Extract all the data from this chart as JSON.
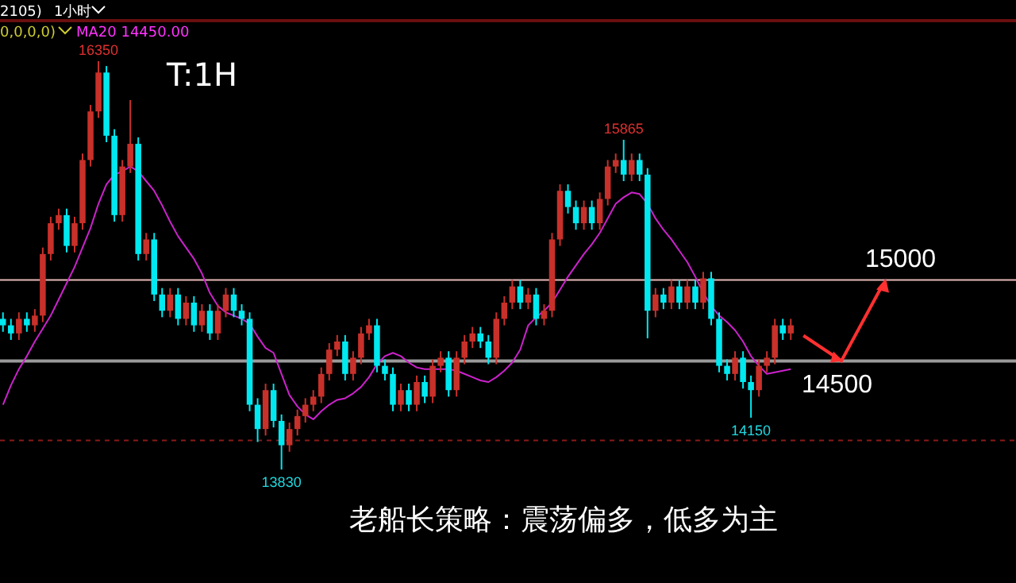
{
  "chart_data": {
    "type": "candlestick",
    "categories": [
      null,
      null,
      null,
      null,
      null,
      null,
      null,
      null,
      null,
      null,
      null,
      null,
      null,
      null,
      null,
      null,
      null,
      null,
      null,
      null,
      null,
      null,
      null,
      null,
      null,
      null,
      null,
      null,
      null,
      null,
      null,
      null,
      null,
      null,
      null,
      null,
      null,
      null,
      null,
      null,
      null,
      null,
      null,
      null,
      null,
      null,
      null,
      null,
      null,
      null,
      null,
      null,
      null,
      null,
      null,
      null,
      null,
      null,
      null,
      null,
      null,
      null,
      null,
      null,
      null,
      null,
      null,
      null,
      null,
      null,
      null,
      null,
      null,
      null,
      null,
      null,
      null,
      null,
      null,
      null,
      null,
      null,
      null,
      null,
      null,
      null,
      null,
      null,
      null,
      null,
      null,
      null,
      null,
      null,
      null,
      null,
      null,
      null,
      null,
      null
    ],
    "ylim": [
      13130,
      16600
    ],
    "ohlc": [
      [
        14760,
        14800,
        14680,
        14720
      ],
      [
        14720,
        14760,
        14630,
        14670
      ],
      [
        14670,
        14800,
        14630,
        14760
      ],
      [
        14760,
        14800,
        14680,
        14720
      ],
      [
        14720,
        14820,
        14680,
        14780
      ],
      [
        14780,
        15200,
        14740,
        15160
      ],
      [
        15160,
        15390,
        15120,
        15350
      ],
      [
        15350,
        15440,
        15310,
        15400
      ],
      [
        15400,
        15440,
        15170,
        15210
      ],
      [
        15210,
        15390,
        15170,
        15350
      ],
      [
        15350,
        15780,
        15310,
        15740
      ],
      [
        15740,
        16080,
        15700,
        16040
      ],
      [
        16040,
        16350,
        16000,
        16280
      ],
      [
        16280,
        16320,
        15850,
        15890
      ],
      [
        15890,
        15930,
        15360,
        15400
      ],
      [
        15400,
        15740,
        15360,
        15700
      ],
      [
        15700,
        16110,
        15660,
        15840
      ],
      [
        15840,
        15880,
        15120,
        15160
      ],
      [
        15160,
        15290,
        15120,
        15250
      ],
      [
        15250,
        15290,
        14870,
        14910
      ],
      [
        14910,
        14950,
        14770,
        14810
      ],
      [
        14810,
        14950,
        14770,
        14910
      ],
      [
        14910,
        14950,
        14720,
        14760
      ],
      [
        14760,
        14900,
        14720,
        14860
      ],
      [
        14860,
        14900,
        14680,
        14720
      ],
      [
        14720,
        14850,
        14680,
        14810
      ],
      [
        14810,
        14850,
        14630,
        14670
      ],
      [
        14670,
        14850,
        14630,
        14810
      ],
      [
        14810,
        14950,
        14770,
        14910
      ],
      [
        14910,
        14950,
        14770,
        14810
      ],
      [
        14810,
        14850,
        14720,
        14760
      ],
      [
        14760,
        14800,
        14190,
        14230
      ],
      [
        14230,
        14270,
        14000,
        14080
      ],
      [
        14080,
        14360,
        14040,
        14320
      ],
      [
        14320,
        14360,
        14090,
        14130
      ],
      [
        14130,
        14170,
        13830,
        13980
      ],
      [
        13980,
        14120,
        13940,
        14080
      ],
      [
        14080,
        14200,
        14040,
        14160
      ],
      [
        14160,
        14270,
        14120,
        14230
      ],
      [
        14230,
        14320,
        14190,
        14280
      ],
      [
        14280,
        14460,
        14240,
        14420
      ],
      [
        14420,
        14610,
        14380,
        14570
      ],
      [
        14570,
        14660,
        14530,
        14620
      ],
      [
        14620,
        14660,
        14380,
        14420
      ],
      [
        14420,
        14560,
        14380,
        14520
      ],
      [
        14520,
        14710,
        14480,
        14670
      ],
      [
        14670,
        14760,
        14630,
        14720
      ],
      [
        14720,
        14760,
        14430,
        14470
      ],
      [
        14470,
        14510,
        14380,
        14420
      ],
      [
        14420,
        14460,
        14190,
        14230
      ],
      [
        14230,
        14360,
        14190,
        14320
      ],
      [
        14320,
        14360,
        14190,
        14230
      ],
      [
        14230,
        14410,
        14190,
        14370
      ],
      [
        14370,
        14410,
        14240,
        14280
      ],
      [
        14280,
        14510,
        14240,
        14470
      ],
      [
        14470,
        14560,
        14430,
        14520
      ],
      [
        14520,
        14560,
        14280,
        14320
      ],
      [
        14320,
        14560,
        14280,
        14520
      ],
      [
        14520,
        14660,
        14480,
        14620
      ],
      [
        14620,
        14710,
        14580,
        14670
      ],
      [
        14670,
        14710,
        14580,
        14620
      ],
      [
        14620,
        14660,
        14480,
        14520
      ],
      [
        14520,
        14800,
        14480,
        14760
      ],
      [
        14760,
        14900,
        14720,
        14860
      ],
      [
        14860,
        15000,
        14820,
        14960
      ],
      [
        14960,
        15000,
        14820,
        14860
      ],
      [
        14860,
        14950,
        14820,
        14910
      ],
      [
        14910,
        14950,
        14720,
        14760
      ],
      [
        14760,
        14850,
        14720,
        14810
      ],
      [
        14810,
        15290,
        14770,
        15250
      ],
      [
        15250,
        15590,
        15210,
        15550
      ],
      [
        15550,
        15590,
        15410,
        15450
      ],
      [
        15450,
        15490,
        15310,
        15350
      ],
      [
        15350,
        15490,
        15310,
        15450
      ],
      [
        15450,
        15490,
        15310,
        15350
      ],
      [
        15350,
        15540,
        15310,
        15500
      ],
      [
        15500,
        15740,
        15460,
        15700
      ],
      [
        15700,
        15780,
        15660,
        15740
      ],
      [
        15740,
        15865,
        15610,
        15650
      ],
      [
        15650,
        15780,
        15610,
        15740
      ],
      [
        15740,
        15780,
        15610,
        15650
      ],
      [
        15650,
        15690,
        14640,
        14810
      ],
      [
        14810,
        14950,
        14770,
        14910
      ],
      [
        14910,
        14950,
        14820,
        14860
      ],
      [
        14860,
        15000,
        14820,
        14960
      ],
      [
        14960,
        15000,
        14820,
        14860
      ],
      [
        14860,
        15000,
        14820,
        14960
      ],
      [
        14960,
        15000,
        14820,
        14860
      ],
      [
        14860,
        15050,
        14820,
        15010
      ],
      [
        15010,
        15050,
        14720,
        14760
      ],
      [
        14760,
        14800,
        14430,
        14470
      ],
      [
        14470,
        14510,
        14380,
        14420
      ],
      [
        14420,
        14560,
        14380,
        14520
      ],
      [
        14520,
        14560,
        14330,
        14370
      ],
      [
        14370,
        14410,
        14150,
        14320
      ],
      [
        14320,
        14510,
        14280,
        14470
      ],
      [
        14470,
        14560,
        14430,
        14520
      ],
      [
        14520,
        14760,
        14480,
        14720
      ],
      [
        14720,
        14760,
        14630,
        14670
      ],
      [
        14670,
        14760,
        14630,
        14720
      ]
    ],
    "series": [
      {
        "type": "line",
        "color": "#cc22cc",
        "values": [
          14230,
          14350,
          14450,
          14530,
          14620,
          14700,
          14780,
          14880,
          14980,
          15080,
          15200,
          15320,
          15470,
          15590,
          15650,
          15670,
          15700,
          15670,
          15610,
          15550,
          15460,
          15360,
          15270,
          15200,
          15130,
          15040,
          14920,
          14840,
          14800,
          14780,
          14760,
          14730,
          14650,
          14580,
          14550,
          14420,
          14290,
          14220,
          14170,
          14140,
          14190,
          14230,
          14260,
          14270,
          14300,
          14340,
          14400,
          14480,
          14530,
          14550,
          14530,
          14490,
          14460,
          14450,
          14450,
          14450,
          14450,
          14440,
          14420,
          14400,
          14380,
          14370,
          14400,
          14440,
          14490,
          14570,
          14720,
          14770,
          14810,
          14860,
          14940,
          15020,
          15090,
          15160,
          15220,
          15290,
          15380,
          15470,
          15510,
          15540,
          15530,
          15470,
          15380,
          15310,
          15250,
          15180,
          15110,
          15020,
          14920,
          14840,
          14780,
          14740,
          14690,
          14620,
          14530,
          14470,
          14420,
          14430,
          14440,
          14450
        ]
      }
    ],
    "ref_lines": [
      {
        "axis": "y",
        "value": 15000,
        "label": "15000",
        "color": "#e8b8b8",
        "line_style": "solid"
      },
      {
        "axis": "y",
        "value": 14500,
        "label": "14500",
        "color": "#9a9a9a",
        "line_style": "solid"
      },
      {
        "axis": "y",
        "value": 14010,
        "color": "#8b1a1a",
        "line_style": "dashed"
      }
    ],
    "annotations": [
      "2105)",
      "1小时",
      "0,0,0,0)",
      "MA20 14450.00",
      "T:1H",
      "老船长策略：震荡偏多，低多为主",
      {
        "text": "16350",
        "y": 16350
      },
      {
        "text": "15865",
        "y": 15865
      },
      {
        "text": "14150",
        "y": 14150
      },
      {
        "text": "13830",
        "y": 13830
      }
    ]
  }
}
